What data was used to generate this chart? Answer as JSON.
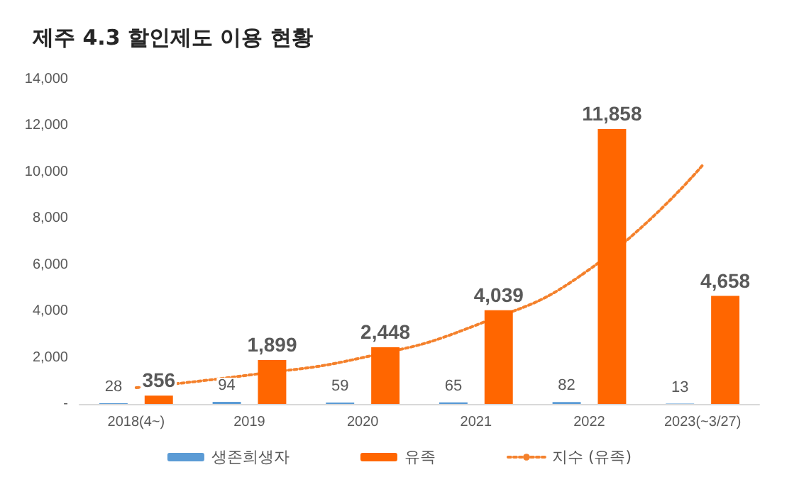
{
  "chart_data": {
    "type": "bar",
    "title": "제주 4.3 할인제도 이용 현황",
    "categories": [
      "2018(4~)",
      "2019",
      "2020",
      "2021",
      "2022",
      "2023(~3/27)"
    ],
    "series": [
      {
        "name": "생존희생자",
        "color": "#5b9bd5",
        "values": [
          28,
          94,
          59,
          65,
          82,
          13
        ],
        "value_labels": [
          "28",
          "94",
          "59",
          "65",
          "82",
          "13"
        ]
      },
      {
        "name": "유족",
        "color": "#ff6600",
        "values": [
          356,
          1899,
          2448,
          4039,
          11858,
          4658
        ],
        "value_labels": [
          "356",
          "1,899",
          "2,448",
          "4,039",
          "11,858",
          "4,658"
        ]
      },
      {
        "name": "지수 (유족)",
        "type": "line",
        "color": "#f4812c",
        "line_style": "dotted",
        "marker": "none",
        "values": [
          700,
          1250,
          2000,
          3400,
          5800,
          10300
        ]
      }
    ],
    "ylim": [
      0,
      14000
    ],
    "yticks": [
      {
        "value": 0,
        "label": "-"
      },
      {
        "value": 2000,
        "label": "2,000"
      },
      {
        "value": 4000,
        "label": "4,000"
      },
      {
        "value": 6000,
        "label": "6,000"
      },
      {
        "value": 8000,
        "label": "8,000"
      },
      {
        "value": 10000,
        "label": "10,000"
      },
      {
        "value": 12000,
        "label": "12,000"
      },
      {
        "value": 14000,
        "label": "14,000"
      }
    ],
    "grid": false,
    "legend": "bottom"
  }
}
